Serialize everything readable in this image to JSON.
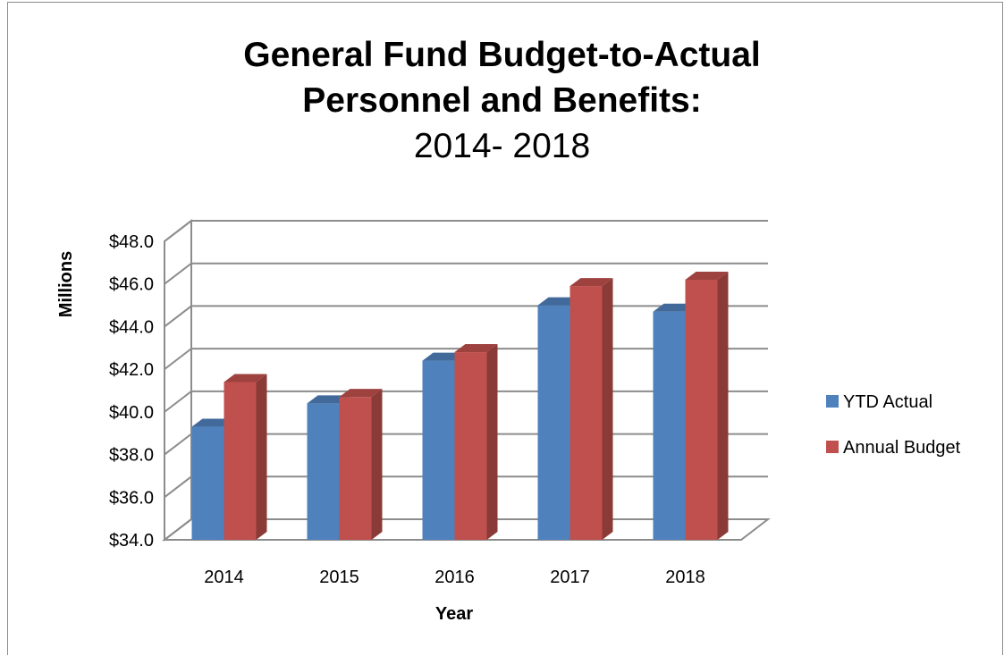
{
  "chart_data": {
    "type": "bar",
    "title": "General Fund Budget-to-Actual",
    "subtitle_bold": "Personnel and Benefits:",
    "subtitle": "2014- 2018",
    "xlabel": "Year",
    "ylabel": "Millions",
    "categories": [
      "2014",
      "2015",
      "2016",
      "2017",
      "2018"
    ],
    "series": [
      {
        "name": "YTD Actual",
        "color": "#4f81bd",
        "values": [
          39.3,
          40.4,
          42.4,
          45.0,
          44.7
        ]
      },
      {
        "name": "Annual Budget",
        "color": "#c0504d",
        "values": [
          41.4,
          40.7,
          42.8,
          45.9,
          46.2
        ]
      }
    ],
    "ylim": [
      34,
      48
    ],
    "yticks": [
      "$34.0",
      "$36.0",
      "$38.0",
      "$40.0",
      "$42.0",
      "$44.0",
      "$46.0",
      "$48.0"
    ],
    "grid": true,
    "legend": "right",
    "style": "3d-clustered-column"
  }
}
